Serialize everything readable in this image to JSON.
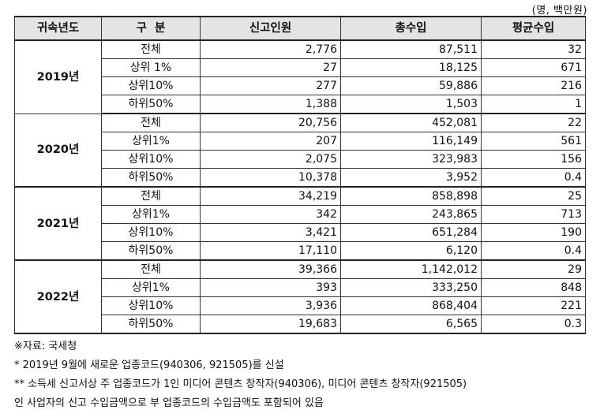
{
  "unit_label": "(명, 백만원)",
  "headers": [
    "귀속년도",
    "구  분",
    "신고인원",
    "총수입",
    "평균수입"
  ],
  "groups": [
    {
      "year": "2019년",
      "rows": [
        {
          "category": "전체",
          "count": "2,776",
          "total": "87,511",
          "average": "32"
        },
        {
          "category": "상위 1%",
          "count": "27",
          "total": "18,125",
          "average": "671"
        },
        {
          "category": "상위10%",
          "count": "277",
          "total": "59,886",
          "average": "216"
        },
        {
          "category": "하위50%",
          "count": "1,388",
          "total": "1,503",
          "average": "1"
        }
      ]
    },
    {
      "year": "2020년",
      "rows": [
        {
          "category": "전체",
          "count": "20,756",
          "total": "452,081",
          "average": "22"
        },
        {
          "category": "상위1%",
          "count": "207",
          "total": "116,149",
          "average": "561"
        },
        {
          "category": "상위10%",
          "count": "2,075",
          "total": "323,983",
          "average": "156"
        },
        {
          "category": "하위50%",
          "count": "10,378",
          "total": "3,952",
          "average": "0.4"
        }
      ]
    },
    {
      "year": "2021년",
      "rows": [
        {
          "category": "전체",
          "count": "34,219",
          "total": "858,898",
          "average": "25"
        },
        {
          "category": "상위1%",
          "count": "342",
          "total": "243,865",
          "average": "713"
        },
        {
          "category": "상위10%",
          "count": "3,421",
          "total": "651,284",
          "average": "190"
        },
        {
          "category": "하위50%",
          "count": "17,110",
          "total": "6,120",
          "average": "0.4"
        }
      ]
    },
    {
      "year": "2022년",
      "rows": [
        {
          "category": "전체",
          "count": "39,366",
          "total": "1,142,012",
          "average": "29"
        },
        {
          "category": "상위1%",
          "count": "393",
          "total": "333,250",
          "average": "848"
        },
        {
          "category": "상위10%",
          "count": "3,936",
          "total": "868,404",
          "average": "221"
        },
        {
          "category": "하위50%",
          "count": "19,683",
          "total": "6,565",
          "average": "0.3"
        }
      ]
    }
  ],
  "notes": [
    "※자료: 국세청",
    "* 2019년 9월에 새로운 업종코드(940306, 921505)를 신설",
    "** 소득세 신고서상 주 업종코드가 1인 미디어 콘텐츠 창작자(940306), 미디어 콘텐츠 창작자(921505)",
    "인 사업자의 신고 수입금액으로 부 업종코드의 수입금액도 포함되어 있음"
  ]
}
